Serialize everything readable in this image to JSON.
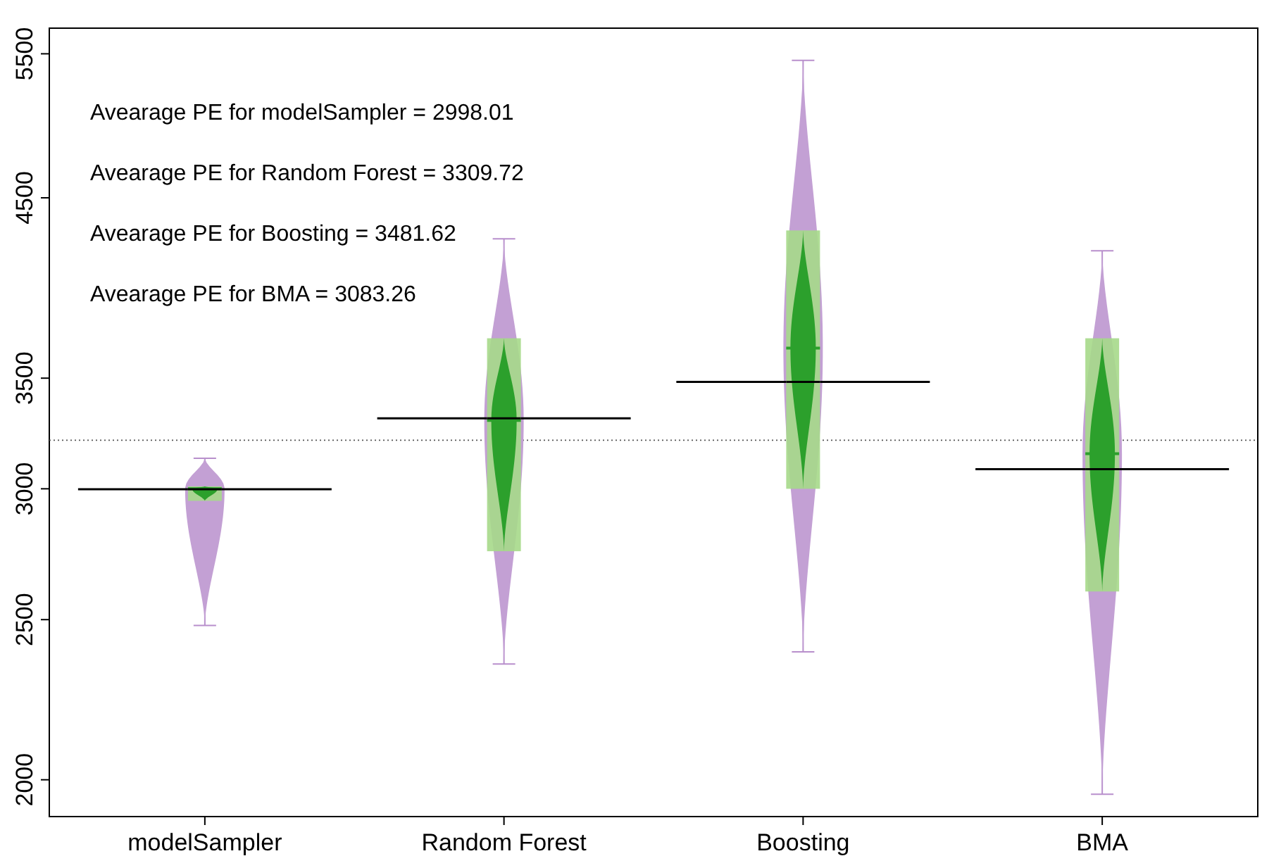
{
  "chart_data": {
    "type": "box",
    "categories": [
      "modelSampler",
      "Random Forest",
      "Boosting",
      "BMA"
    ],
    "series": [
      {
        "color": "#a6d98a",
        "boxes": [
          {
            "low": 2480,
            "q1": 2950,
            "median": 3000,
            "q3": 3010,
            "high": 3130,
            "mean": 2998.01
          },
          {
            "low": 2350,
            "q1": 2750,
            "median": 3300,
            "q3": 3700,
            "high": 4250,
            "mean": 3309.72
          },
          {
            "low": 2390,
            "q1": 3000,
            "median": 3650,
            "q3": 4300,
            "high": 5450,
            "mean": 3481.62
          },
          {
            "low": 1960,
            "q1": 2600,
            "median": 3150,
            "q3": 3700,
            "high": 4180,
            "mean": 3083.26
          }
        ]
      }
    ],
    "ylim": [
      1900,
      5700
    ],
    "yticks": [
      2000,
      2500,
      3000,
      3500,
      4500,
      5500
    ],
    "log": true,
    "grid": false,
    "ref_lines": [
      {
        "axis": "y",
        "value": 3210,
        "line_style": "dotted"
      }
    ],
    "annotations": [
      "Avearage PE for modelSampler = 2998.01",
      "Avearage PE for Random Forest = 3309.72",
      "Avearage PE for Boosting = 3481.62",
      "Avearage PE for BMA = 3083.26"
    ]
  }
}
